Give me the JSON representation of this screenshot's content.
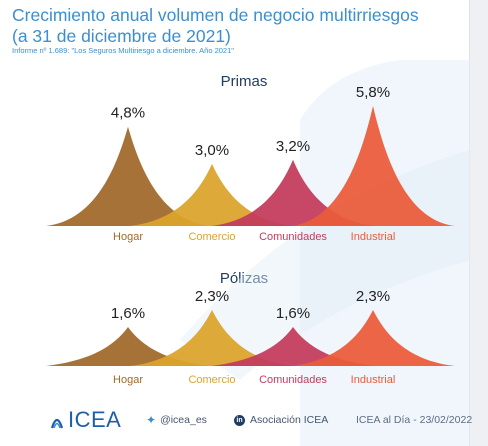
{
  "title_line1": "Crecimiento anual volumen de negocio multirriesgos",
  "title_line2": "(a 31 de diciembre de 2021)",
  "subtitle": "Informe nº 1.689: \"Los Seguros Multiriesgo a diciembre. Año 2021\"",
  "chart_data": [
    {
      "type": "area",
      "title": "Primas",
      "categories": [
        "Hogar",
        "Comercio",
        "Comunidades",
        "Industrial"
      ],
      "values": [
        4.8,
        3.0,
        3.2,
        5.8
      ],
      "value_labels": [
        "4,8%",
        "3,0%",
        "3,2%",
        "5,8%"
      ],
      "colors": [
        "#a2692a",
        "#dba42c",
        "#c33b5d",
        "#ea5b3a"
      ]
    },
    {
      "type": "area",
      "title": "Pólizas",
      "categories": [
        "Hogar",
        "Comercio",
        "Comunidades",
        "Industrial"
      ],
      "values": [
        1.6,
        2.3,
        1.6,
        2.3
      ],
      "value_labels": [
        "1,6%",
        "2,3%",
        "1,6%",
        "2,3%"
      ],
      "colors": [
        "#a2692a",
        "#dba42c",
        "#c33b5d",
        "#ea5b3a"
      ]
    }
  ],
  "footer": {
    "logo": "ICEA",
    "twitter": "@icea_es",
    "linkedin": "Asociación ICEA",
    "fecha": "ICEA al Día - 23/02/2022"
  },
  "icons": {
    "twitter": "twitter-icon",
    "linkedin": "linkedin-icon",
    "logo": "icea-logo-icon"
  }
}
